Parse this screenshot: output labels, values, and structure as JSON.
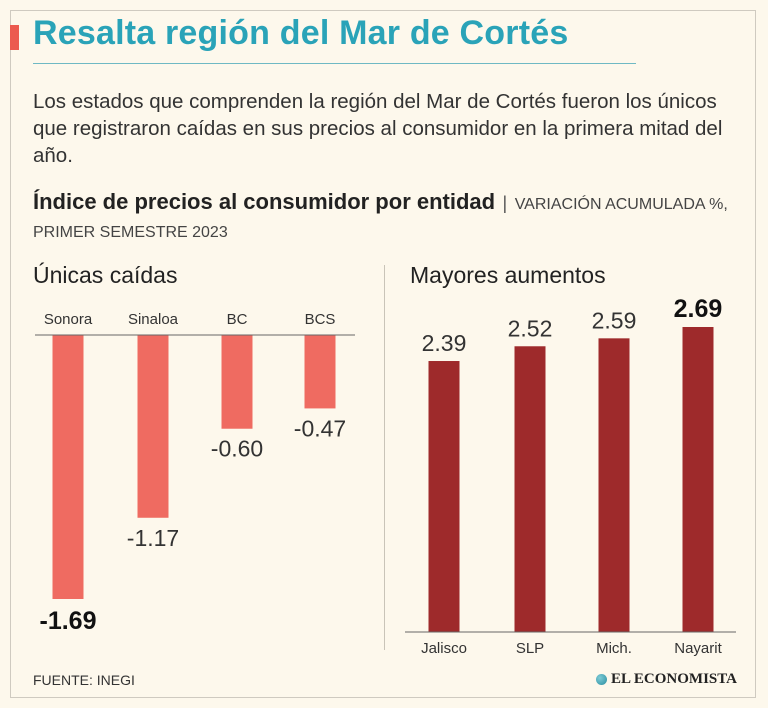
{
  "header": {
    "title": "Resalta región del Mar de Cortés",
    "description": "Los estados que comprenden la región del Mar de Cortés fueron los únicos que registraron caídas en sus precios al consumidor en la primera mitad del año.",
    "chart_title": "Índice de precios al consumidor por entidad",
    "chart_separator": "|",
    "chart_unit": "VARIACIÓN ACUMULADA %, PRIMER SEMESTRE 2023"
  },
  "colors": {
    "title": "#2aa3b8",
    "accent": "#ec5a4f",
    "negative_bar": "#ef6b61",
    "positive_bar": "#9e2a2b",
    "background": "#fdf8ec"
  },
  "chart_data": [
    {
      "type": "bar",
      "title": "Únicas caídas",
      "categories": [
        "Sonora",
        "Sinaloa",
        "BC",
        "BCS"
      ],
      "values": [
        -1.69,
        -1.17,
        -0.6,
        -0.47
      ],
      "labels": [
        "-1.69",
        "-1.17",
        "-0.60",
        "-0.47"
      ],
      "highlight": [
        true,
        false,
        false,
        false
      ],
      "ylim": [
        -1.69,
        0
      ]
    },
    {
      "type": "bar",
      "title": "Mayores aumentos",
      "categories": [
        "Jalisco",
        "SLP",
        "Mich.",
        "Nayarit"
      ],
      "values": [
        2.39,
        2.52,
        2.59,
        2.69
      ],
      "labels": [
        "2.39",
        "2.52",
        "2.59",
        "2.69"
      ],
      "highlight": [
        false,
        false,
        false,
        true
      ],
      "ylim": [
        0,
        2.69
      ]
    }
  ],
  "footer": {
    "source": "FUENTE: INEGI",
    "brand": "EL ECONOMISTA"
  }
}
